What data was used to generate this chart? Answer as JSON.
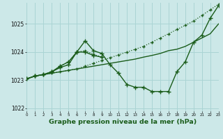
{
  "bg_color": "#cce8e8",
  "grid_color": "#aad4d4",
  "line_color": "#1a5c1a",
  "xlabel": "Graphe pression niveau de la mer (hPa)",
  "xlim": [
    0,
    23
  ],
  "ylim": [
    1021.9,
    1025.75
  ],
  "yticks": [
    1022,
    1023,
    1024,
    1025
  ],
  "series": [
    {
      "x": [
        0,
        1,
        2,
        3,
        4,
        5,
        6,
        7,
        8,
        9,
        10,
        11,
        12,
        13,
        14,
        15,
        16,
        17,
        18,
        19,
        20,
        21,
        22,
        23
      ],
      "y": [
        1023.05,
        1023.15,
        1023.2,
        1023.25,
        1023.3,
        1023.35,
        1023.4,
        1023.45,
        1023.5,
        1023.55,
        1023.6,
        1023.65,
        1023.7,
        1023.75,
        1023.82,
        1023.88,
        1023.95,
        1024.05,
        1024.1,
        1024.2,
        1024.35,
        1024.5,
        1024.65,
        1025.0
      ],
      "linestyle": "-",
      "marker": null,
      "lw": 1.0
    },
    {
      "x": [
        0,
        1,
        2,
        3,
        4,
        5,
        6,
        7,
        8,
        9,
        10,
        11,
        12,
        13,
        14,
        15,
        16,
        17,
        18,
        19,
        20,
        21,
        22,
        23
      ],
      "y": [
        1023.05,
        1023.15,
        1023.2,
        1023.25,
        1023.3,
        1023.35,
        1023.4,
        1023.5,
        1023.6,
        1023.7,
        1023.8,
        1023.9,
        1024.0,
        1024.1,
        1024.2,
        1024.35,
        1024.5,
        1024.65,
        1024.8,
        1024.95,
        1025.1,
        1025.3,
        1025.5,
        1025.7
      ],
      "linestyle": ":",
      "marker": "+",
      "lw": 0.9,
      "ms": 3.5
    },
    {
      "x": [
        0,
        1,
        2,
        3,
        4,
        5,
        6,
        7,
        8,
        9,
        10,
        11,
        12,
        13,
        14,
        15,
        16,
        17,
        18,
        19,
        20,
        21,
        22,
        23
      ],
      "y": [
        1023.05,
        1023.15,
        1023.2,
        1023.3,
        1023.5,
        1023.65,
        1024.0,
        1024.4,
        1024.05,
        1023.95,
        1023.55,
        1023.25,
        1022.85,
        1022.75,
        1022.75,
        1022.6,
        1022.6,
        1022.6,
        1023.3,
        1023.65,
        1024.35,
        1024.6,
        1025.2,
        1025.65
      ],
      "linestyle": "-",
      "marker": "+",
      "lw": 1.0,
      "ms": 4.0
    },
    {
      "x": [
        0,
        1,
        2,
        3,
        4,
        5,
        6,
        7,
        8,
        9
      ],
      "y": [
        1023.05,
        1023.15,
        1023.2,
        1023.3,
        1023.5,
        1023.65,
        1024.0,
        1024.05,
        1023.92,
        1023.82
      ],
      "linestyle": ":",
      "marker": "+",
      "lw": 0.9,
      "ms": 3.5
    },
    {
      "x": [
        0,
        1,
        2,
        3,
        4,
        5,
        6,
        7,
        8,
        9
      ],
      "y": [
        1023.05,
        1023.15,
        1023.2,
        1023.3,
        1023.45,
        1023.55,
        1024.0,
        1024.0,
        1023.88,
        1023.82
      ],
      "linestyle": "-",
      "marker": "+",
      "lw": 1.0,
      "ms": 4.0
    }
  ]
}
